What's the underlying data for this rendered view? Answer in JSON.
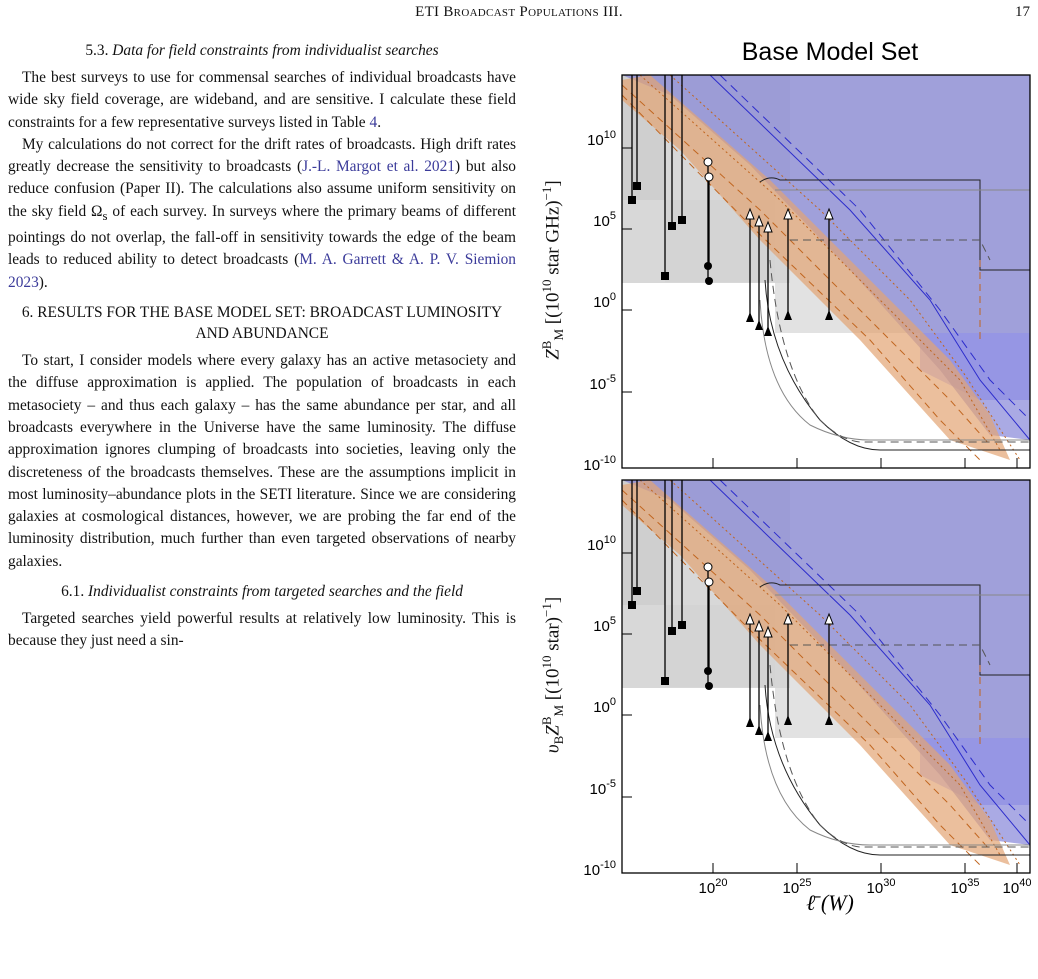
{
  "header": {
    "title": "ETI Broadcast Populations III.",
    "page": "17"
  },
  "sections": [
    {
      "heading": {
        "number": "5.3.",
        "title": "Data for field constraints from individualist searches",
        "italic": true
      },
      "paragraphs": [
        [
          {
            "text": "The best surveys to use for commensal searches of individual broadcasts have wide sky field coverage, are wideband, and are sensitive. I calculate these field constraints for a few representative surveys listed in Table "
          },
          {
            "text": "4",
            "cite": true
          },
          {
            "text": "."
          }
        ],
        [
          {
            "text": "My calculations do not correct for the drift rates of broadcasts. High drift rates greatly decrease the sensitivity to broadcasts ("
          },
          {
            "text": "J.-L. Margot et al. 2021",
            "cite": true
          },
          {
            "text": ") but also reduce confusion (Paper II). The calculations also assume uniform sensitivity on the sky field Ω"
          },
          {
            "text": "s",
            "sub": true
          },
          {
            "text": " of each survey. In surveys where the primary beams of different pointings do not overlap, the fall-off in sensitivity towards the edge of the beam leads to reduced ability to detect broadcasts ("
          },
          {
            "text": "M. A. Garrett & A. P. V. Siemion 2023",
            "cite": true
          },
          {
            "text": ")."
          }
        ]
      ]
    },
    {
      "heading": {
        "number": "6.",
        "title": "RESULTS FOR THE BASE MODEL SET: BROADCAST LUMINOSITY AND ABUNDANCE",
        "italic": false
      },
      "paragraphs": [
        [
          {
            "text": "To start, I consider models where every galaxy has an active metasociety and the diffuse approximation is applied. The population of broadcasts in each metasociety – and thus each galaxy – has the same abundance per star, and all broadcasts everywhere in the Universe have the same luminosity. The diffuse approximation ignores clumping of broadcasts into societies, leaving only the discreteness of the broadcasts themselves. These are the assumptions implicit in most luminosity–abundance plots in the SETI literature. Since we are considering galaxies at cosmological distances, however, we are probing the far end of the luminosity distribution, much further than even targeted observations of nearby galaxies."
          }
        ]
      ]
    },
    {
      "heading": {
        "number": "6.1.",
        "title": "Individualist constraints from targeted searches and the field",
        "italic": true
      },
      "paragraphs": [
        [
          {
            "text": "Targeted searches yield powerful results at relatively low luminosity. This is because they just need a sin-"
          }
        ]
      ]
    }
  ],
  "figure": {
    "title": "Base Model Set",
    "x_label": "ℓ̄ (W)",
    "x_ticks": [
      {
        "base": "10",
        "exp": "20"
      },
      {
        "base": "10",
        "exp": "25"
      },
      {
        "base": "10",
        "exp": "30"
      },
      {
        "base": "10",
        "exp": "35"
      },
      {
        "base": "10",
        "exp": "40"
      }
    ],
    "panels": [
      {
        "y_label": [
          {
            "text": "Z",
            "italic": true
          },
          {
            "text": "B",
            "pos": "sup"
          },
          {
            "text": "M",
            "pos": "sub"
          },
          {
            "text": " [(10"
          },
          {
            "text": "10",
            "pos": "sup"
          },
          {
            "text": " star GHz)"
          },
          {
            "text": "−1",
            "pos": "sup"
          },
          {
            "text": "]"
          }
        ],
        "y_ticks": [
          {
            "base": "10",
            "exp": "10"
          },
          {
            "base": "10",
            "exp": "5"
          },
          {
            "base": "10",
            "exp": "0"
          },
          {
            "base": "10",
            "exp": "-5"
          },
          {
            "base": "10",
            "exp": "-10"
          }
        ]
      },
      {
        "y_label": [
          {
            "text": "υ",
            "italic": true
          },
          {
            "text": "B",
            "pos": "sub"
          },
          {
            "text": "Z",
            "italic": true
          },
          {
            "text": "B",
            "pos": "sup"
          },
          {
            "text": "M",
            "pos": "sub"
          },
          {
            "text": " [(10"
          },
          {
            "text": "10",
            "pos": "sup"
          },
          {
            "text": " star)"
          },
          {
            "text": "−1",
            "pos": "sup"
          },
          {
            "text": "]"
          }
        ],
        "y_ticks": [
          {
            "base": "10",
            "exp": "10"
          },
          {
            "base": "10",
            "exp": "5"
          },
          {
            "base": "10",
            "exp": "0"
          },
          {
            "base": "10",
            "exp": "-5"
          },
          {
            "base": "10",
            "exp": "-10"
          }
        ]
      }
    ]
  }
}
